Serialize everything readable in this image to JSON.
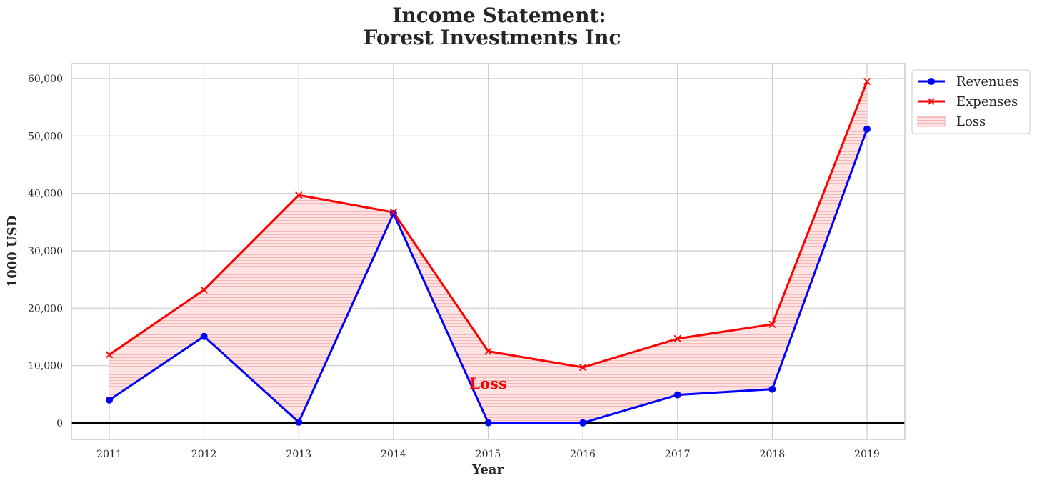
{
  "chart_data": {
    "type": "line",
    "title": "Income Statement:",
    "subtitle": "Forest Investments Inc",
    "xlabel": "Year",
    "ylabel": "1000 USD",
    "categories": [
      "2011",
      "2012",
      "2013",
      "2014",
      "2015",
      "2016",
      "2017",
      "2018",
      "2019"
    ],
    "series": [
      {
        "name": "Revenues",
        "color": "#0000ff",
        "marker": "circle",
        "values": [
          4000,
          15100,
          150,
          36500,
          50,
          30,
          4900,
          5900,
          51200
        ]
      },
      {
        "name": "Expenses",
        "color": "#ff0000",
        "marker": "x",
        "values": [
          11900,
          23200,
          39700,
          36700,
          12500,
          9700,
          14700,
          17200,
          59500
        ]
      }
    ],
    "fill_between": {
      "name": "Loss",
      "color": "#ff0000"
    },
    "annotation": {
      "text": "Loss",
      "x": 2015,
      "y": 6500,
      "color": "#ff0000"
    },
    "ylim": [
      -3000,
      62500
    ],
    "yticks": [
      0,
      10000,
      20000,
      30000,
      40000,
      50000,
      60000
    ],
    "ytick_labels": [
      "0",
      "10,000",
      "20,000",
      "30,000",
      "40,000",
      "50,000",
      "60,000"
    ],
    "grid": true,
    "zero_line": true,
    "legend_position": "upper-left-outside-right"
  }
}
